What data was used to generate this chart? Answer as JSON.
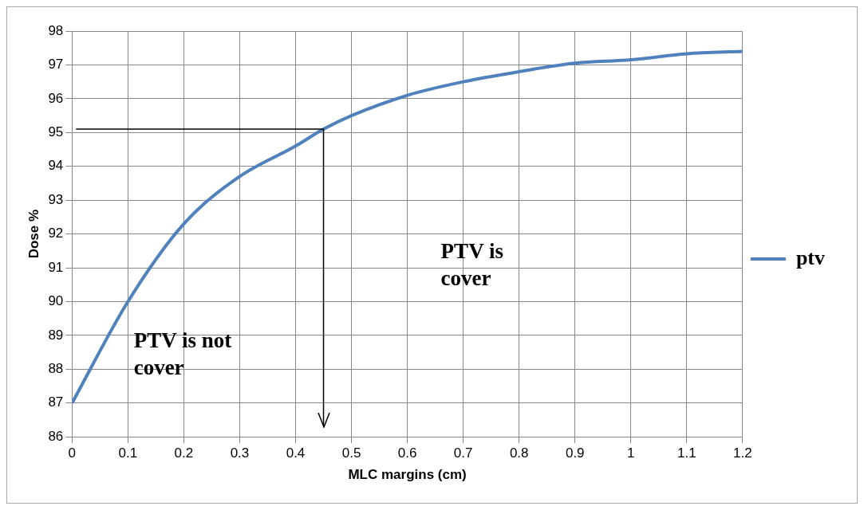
{
  "chart_data": {
    "type": "line",
    "xlabel": "MLC margins (cm)",
    "ylabel": "Dose %",
    "x": [
      0,
      0.1,
      0.2,
      0.3,
      0.4,
      0.45,
      0.5,
      0.6,
      0.7,
      0.8,
      0.9,
      1.0,
      1.1,
      1.2
    ],
    "series": [
      {
        "name": "ptv",
        "color": "#4f81bd",
        "values": [
          87,
          90.0,
          92.3,
          93.7,
          94.6,
          95.1,
          95.5,
          96.1,
          96.5,
          96.8,
          97.05,
          97.15,
          97.33,
          97.4
        ]
      }
    ],
    "xlim": [
      0,
      1.2
    ],
    "xticks": [
      0,
      0.1,
      0.2,
      0.3,
      0.4,
      0.5,
      0.6,
      0.7,
      0.8,
      0.9,
      1,
      1.1,
      1.2
    ],
    "ylim": [
      86,
      98
    ],
    "yticks": [
      86,
      87,
      88,
      89,
      90,
      91,
      92,
      93,
      94,
      95,
      96,
      97,
      98
    ],
    "ref_lines": [
      {
        "axis": "y",
        "value": 95.1,
        "color": "#000000"
      },
      {
        "axis": "x",
        "value": 0.45,
        "color": "#000000"
      }
    ],
    "annotations": [
      "PTV is not cover",
      "PTV is cover"
    ],
    "grid": true,
    "legend": "right",
    "marker": "none",
    "line_style": "solid"
  }
}
